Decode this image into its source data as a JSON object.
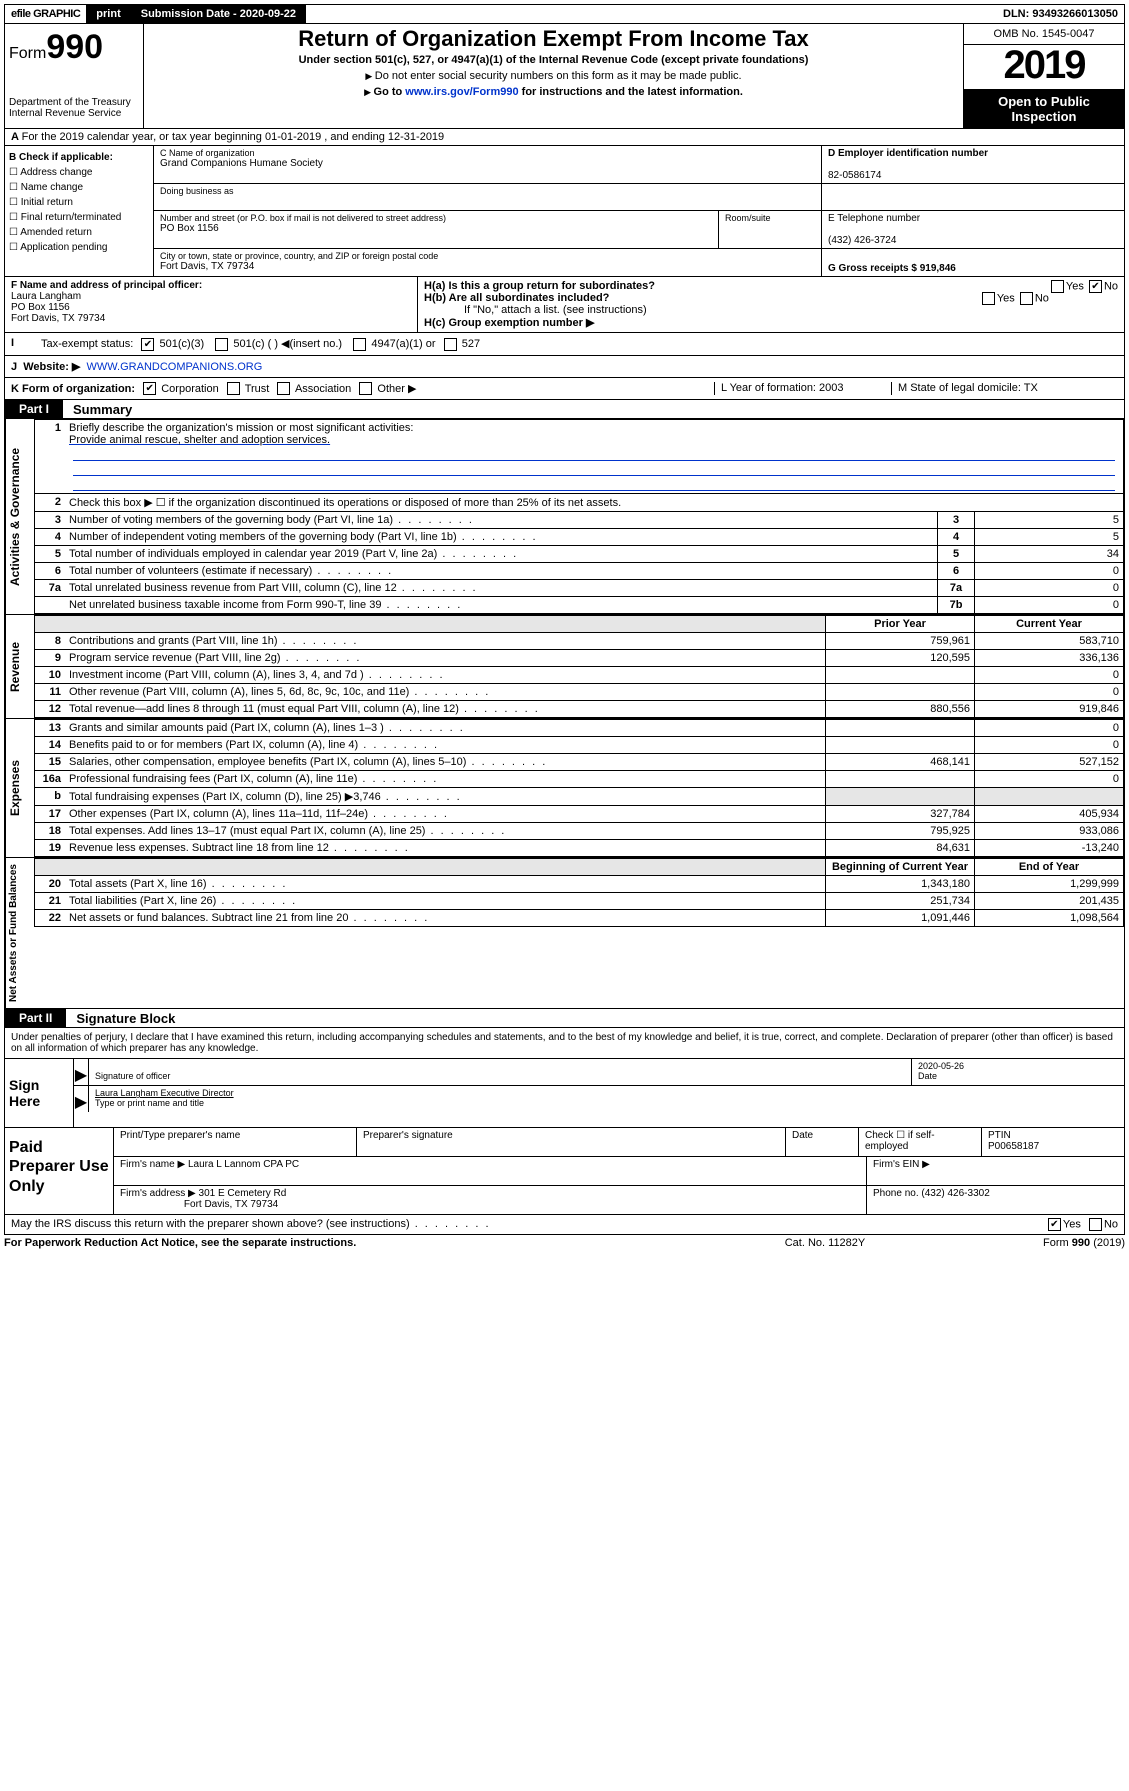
{
  "top": {
    "efile": "efile GRAPHIC",
    "print": "print",
    "subdate_label": "Submission Date - 2020-09-22",
    "dln": "DLN: 93493266013050"
  },
  "header": {
    "form_prefix": "Form",
    "form_no": "990",
    "dept": "Department of the Treasury",
    "irs": "Internal Revenue Service",
    "title": "Return of Organization Exempt From Income Tax",
    "sub": "Under section 501(c), 527, or 4947(a)(1) of the Internal Revenue Code (except private foundations)",
    "note1": "Do not enter social security numbers on this form as it may be made public.",
    "note2_a": "Go to ",
    "note2_link": "www.irs.gov/Form990",
    "note2_b": " for instructions and the latest information.",
    "omb": "OMB No. 1545-0047",
    "year": "2019",
    "open": "Open to Public Inspection"
  },
  "lineA": "For the 2019 calendar year, or tax year beginning 01-01-2019   , and ending 12-31-2019",
  "B": {
    "hdr": "B Check if applicable:",
    "items": [
      "Address change",
      "Name change",
      "Initial return",
      "Final return/terminated",
      "Amended return",
      "Application pending"
    ]
  },
  "C": {
    "name_lbl": "C Name of organization",
    "name": "Grand Companions Humane Society",
    "dba_lbl": "Doing business as",
    "addr_lbl": "Number and street (or P.O. box if mail is not delivered to street address)",
    "addr": "PO Box 1156",
    "room_lbl": "Room/suite",
    "city_lbl": "City or town, state or province, country, and ZIP or foreign postal code",
    "city": "Fort Davis, TX  79734"
  },
  "D": {
    "ein_lbl": "D Employer identification number",
    "ein": "82-0586174",
    "tel_lbl": "E Telephone number",
    "tel": "(432) 426-3724",
    "gross": "G Gross receipts $ 919,846"
  },
  "F": {
    "lbl": "F  Name and address of principal officer:",
    "name": "Laura Langham",
    "addr": "PO Box 1156",
    "city": "Fort Davis, TX  79734"
  },
  "H": {
    "a": "H(a)  Is this a group return for subordinates?",
    "b": "H(b)  Are all subordinates included?",
    "b2": "If \"No,\" attach a list. (see instructions)",
    "c": "H(c)  Group exemption number ▶"
  },
  "I": {
    "lbl": "Tax-exempt status:",
    "opts": [
      "501(c)(3)",
      "501(c) (  ) ◀(insert no.)",
      "4947(a)(1) or",
      "527"
    ]
  },
  "J": {
    "lbl": "Website: ▶",
    "val": "WWW.GRANDCOMPANIONS.ORG"
  },
  "K": {
    "lbl": "K Form of organization:",
    "opts": [
      "Corporation",
      "Trust",
      "Association",
      "Other ▶"
    ],
    "L": "L Year of formation: 2003",
    "M": "M State of legal domicile: TX"
  },
  "part1": {
    "tab": "Part I",
    "title": "Summary",
    "q1": "Briefly describe the organization's mission or most significant activities:",
    "mission": "Provide animal rescue, shelter and adoption services.",
    "q2": "Check this box ▶ ☐  if the organization discontinued its operations or disposed of more than 25% of its net assets.",
    "rows_gov": [
      {
        "n": "3",
        "d": "Number of voting members of the governing body (Part VI, line 1a)",
        "box": "3",
        "v": "5"
      },
      {
        "n": "4",
        "d": "Number of independent voting members of the governing body (Part VI, line 1b)",
        "box": "4",
        "v": "5"
      },
      {
        "n": "5",
        "d": "Total number of individuals employed in calendar year 2019 (Part V, line 2a)",
        "box": "5",
        "v": "34"
      },
      {
        "n": "6",
        "d": "Total number of volunteers (estimate if necessary)",
        "box": "6",
        "v": "0"
      },
      {
        "n": "7a",
        "d": "Total unrelated business revenue from Part VIII, column (C), line 12",
        "box": "7a",
        "v": "0"
      },
      {
        "n": "",
        "d": "Net unrelated business taxable income from Form 990-T, line 39",
        "box": "7b",
        "v": "0"
      }
    ],
    "col_prior": "Prior Year",
    "col_curr": "Current Year",
    "rows_rev": [
      {
        "n": "8",
        "d": "Contributions and grants (Part VIII, line 1h)",
        "p": "759,961",
        "c": "583,710"
      },
      {
        "n": "9",
        "d": "Program service revenue (Part VIII, line 2g)",
        "p": "120,595",
        "c": "336,136"
      },
      {
        "n": "10",
        "d": "Investment income (Part VIII, column (A), lines 3, 4, and 7d )",
        "p": "",
        "c": "0"
      },
      {
        "n": "11",
        "d": "Other revenue (Part VIII, column (A), lines 5, 6d, 8c, 9c, 10c, and 11e)",
        "p": "",
        "c": "0"
      },
      {
        "n": "12",
        "d": "Total revenue—add lines 8 through 11 (must equal Part VIII, column (A), line 12)",
        "p": "880,556",
        "c": "919,846"
      }
    ],
    "rows_exp": [
      {
        "n": "13",
        "d": "Grants and similar amounts paid (Part IX, column (A), lines 1–3 )",
        "p": "",
        "c": "0"
      },
      {
        "n": "14",
        "d": "Benefits paid to or for members (Part IX, column (A), line 4)",
        "p": "",
        "c": "0"
      },
      {
        "n": "15",
        "d": "Salaries, other compensation, employee benefits (Part IX, column (A), lines 5–10)",
        "p": "468,141",
        "c": "527,152"
      },
      {
        "n": "16a",
        "d": "Professional fundraising fees (Part IX, column (A), line 11e)",
        "p": "",
        "c": "0"
      },
      {
        "n": "b",
        "d": "Total fundraising expenses (Part IX, column (D), line 25) ▶3,746",
        "p": "shade",
        "c": "shade"
      },
      {
        "n": "17",
        "d": "Other expenses (Part IX, column (A), lines 11a–11d, 11f–24e)",
        "p": "327,784",
        "c": "405,934"
      },
      {
        "n": "18",
        "d": "Total expenses. Add lines 13–17 (must equal Part IX, column (A), line 25)",
        "p": "795,925",
        "c": "933,086"
      },
      {
        "n": "19",
        "d": "Revenue less expenses. Subtract line 18 from line 12",
        "p": "84,631",
        "c": "-13,240"
      }
    ],
    "col_beg": "Beginning of Current Year",
    "col_end": "End of Year",
    "rows_net": [
      {
        "n": "20",
        "d": "Total assets (Part X, line 16)",
        "p": "1,343,180",
        "c": "1,299,999"
      },
      {
        "n": "21",
        "d": "Total liabilities (Part X, line 26)",
        "p": "251,734",
        "c": "201,435"
      },
      {
        "n": "22",
        "d": "Net assets or fund balances. Subtract line 21 from line 20",
        "p": "1,091,446",
        "c": "1,098,564"
      }
    ]
  },
  "part2": {
    "tab": "Part II",
    "title": "Signature Block",
    "perjury": "Under penalties of perjury, I declare that I have examined this return, including accompanying schedules and statements, and to the best of my knowledge and belief, it is true, correct, and complete. Declaration of preparer (other than officer) is based on all information of which preparer has any knowledge.",
    "sign_here": "Sign Here",
    "sig_officer_lbl": "Signature of officer",
    "date": "2020-05-26",
    "date_lbl": "Date",
    "officer": "Laura Langham  Executive Director",
    "type_lbl": "Type or print name and title"
  },
  "prep": {
    "title": "Paid Preparer Use Only",
    "pt_lbl": "Print/Type preparer's name",
    "ps_lbl": "Preparer's signature",
    "dt_lbl": "Date",
    "se_lbl": "Check ☐ if self-employed",
    "ptin_lbl": "PTIN",
    "ptin": "P00658187",
    "firm_name_lbl": "Firm's name   ▶",
    "firm_name": "Laura L Lannom CPA PC",
    "firm_ein_lbl": "Firm's EIN ▶",
    "firm_addr_lbl": "Firm's address ▶",
    "firm_addr": "301 E Cemetery Rd",
    "firm_city": "Fort Davis, TX  79734",
    "firm_phone_lbl": "Phone no. (432) 426-3302"
  },
  "footer": {
    "q": "May the IRS discuss this return with the preparer shown above? (see instructions)",
    "paperwork": "For Paperwork Reduction Act Notice, see the separate instructions.",
    "cat": "Cat. No. 11282Y",
    "form": "Form 990 (2019)"
  }
}
